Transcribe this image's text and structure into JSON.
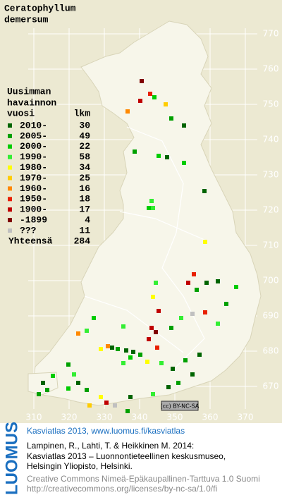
{
  "title": [
    "Ceratophyllum",
    "demersum"
  ],
  "legend": {
    "heading": [
      "Uusimman",
      "havainnon",
      "vuosi"
    ],
    "count_heading": "lkm",
    "rows": [
      {
        "label": "2010-",
        "count": 30,
        "color": "#006400"
      },
      {
        "label": "2005-",
        "count": 49,
        "color": "#00a000"
      },
      {
        "label": "2000-",
        "count": 22,
        "color": "#00cc00"
      },
      {
        "label": "1990-",
        "count": 58,
        "color": "#33ee33"
      },
      {
        "label": "1980-",
        "count": 34,
        "color": "#ffff00"
      },
      {
        "label": "1970-",
        "count": 25,
        "color": "#ffcc00"
      },
      {
        "label": "1960-",
        "count": 16,
        "color": "#ff8800"
      },
      {
        "label": "1950-",
        "count": 18,
        "color": "#e82000"
      },
      {
        "label": "1900-",
        "count": 17,
        "color": "#c00000"
      },
      {
        "label": "-1899",
        "count": 4,
        "color": "#800000"
      },
      {
        "label": "???",
        "count": 11,
        "color": "#c0c0c0"
      }
    ],
    "total": {
      "label": "Yhteensä",
      "count": 284
    }
  },
  "map": {
    "y_labels": [
      770,
      760,
      750,
      740,
      730,
      720,
      710,
      700,
      690,
      680,
      670
    ],
    "x_labels": [
      310,
      320,
      330,
      340,
      350,
      360,
      370
    ],
    "license_badge": "(cc) BY-NC-SA"
  },
  "footer": {
    "logo": "LUOMUS",
    "headline": "Kasviatlas 2013, www.luomus.fi/kasviatlas",
    "citation": [
      "Lampinen, R., Lahti, T. & Heikkinen M. 2014:",
      "Kasviatlas 2013 – Luonnontieteellinen keskusmuseo,",
      "Helsingin Yliopisto, Helsinki."
    ],
    "license": [
      "Creative Commons Nimeä-Epäkaupallinen-Tarttuva 1.0 Suomi",
      "http://creativecommons.org/licenses/by-nc-sa/1.0/fi"
    ]
  }
}
